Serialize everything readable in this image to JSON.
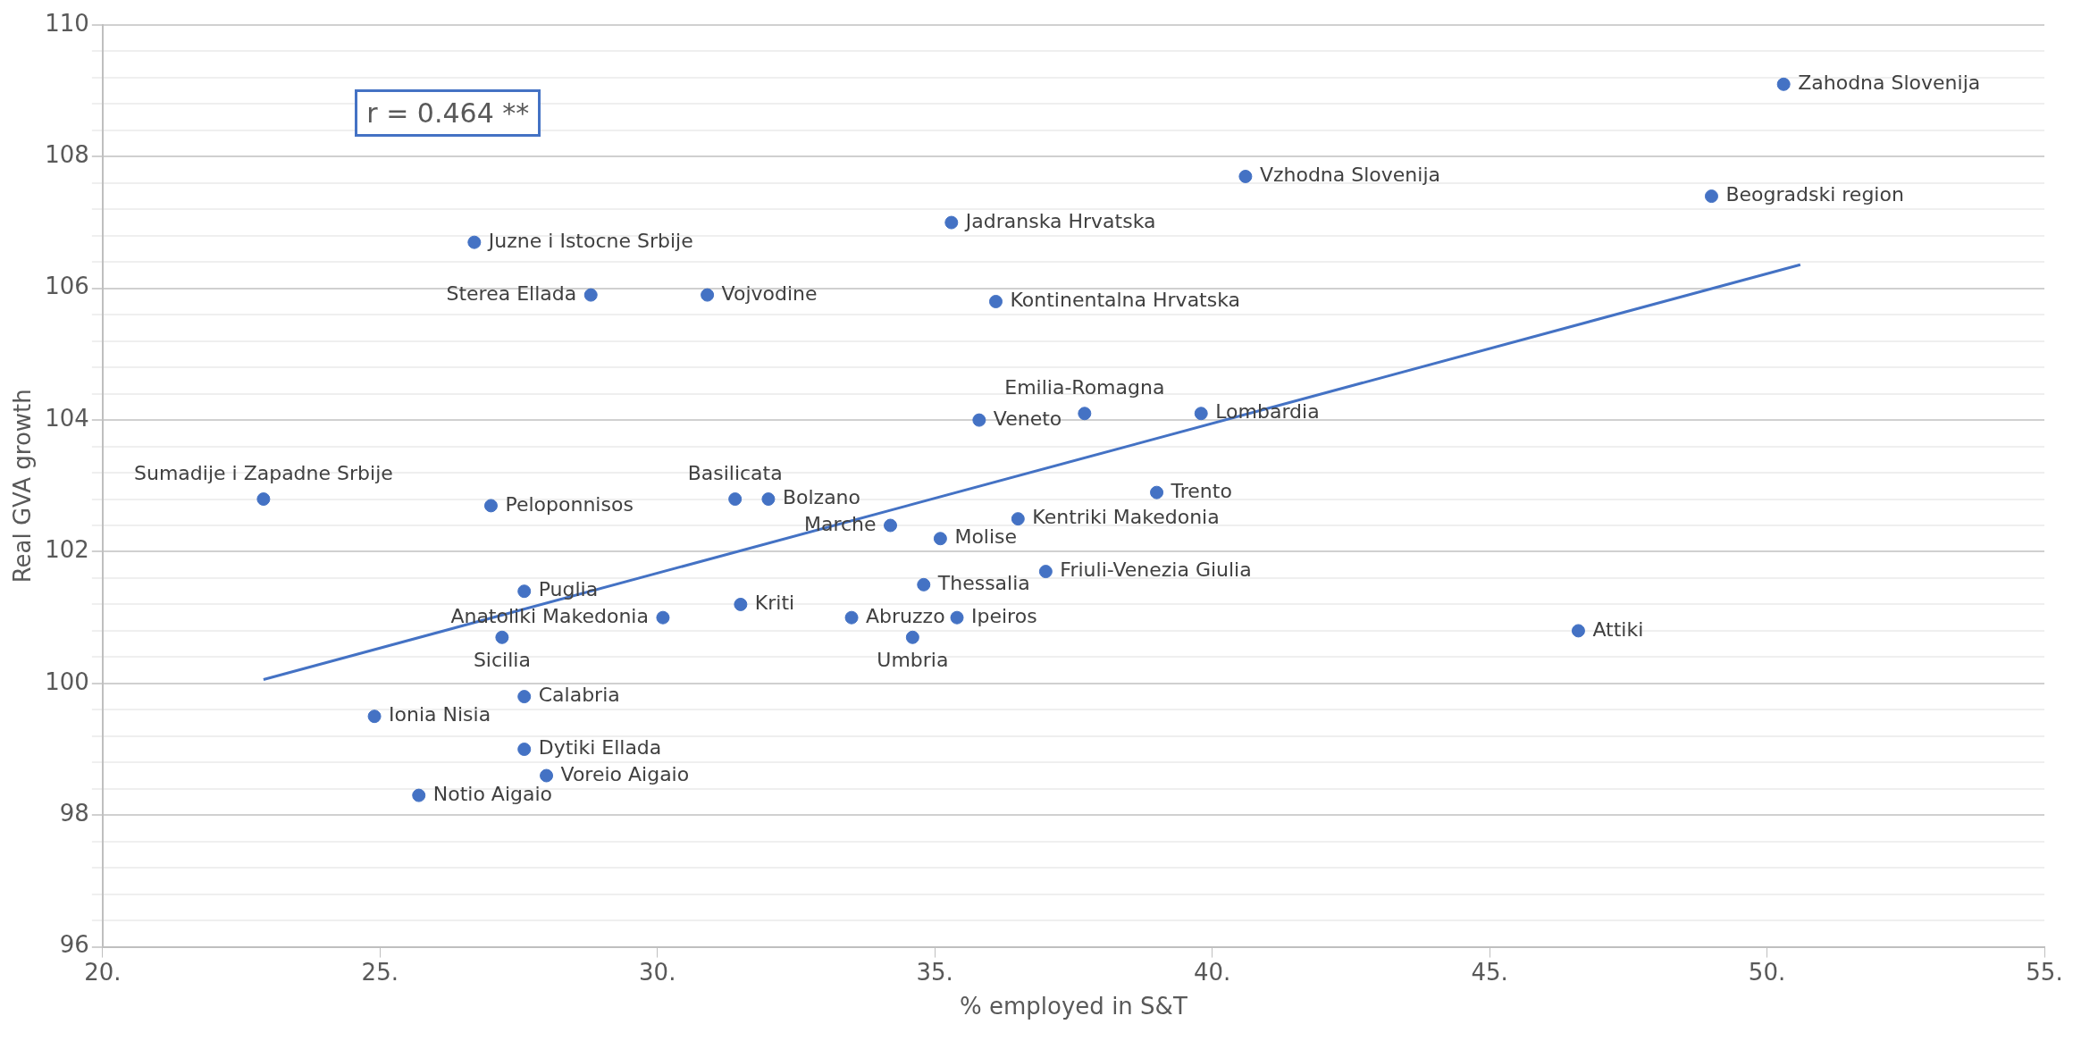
{
  "chart_data": {
    "type": "scatter",
    "xlabel": "% employed in S&T",
    "ylabel": "Real GVA growth",
    "x": [
      50.3,
      40.6,
      49.0,
      35.3,
      26.7,
      28.8,
      30.9,
      36.1,
      37.7,
      39.8,
      35.8,
      22.9,
      27.0,
      31.4,
      32.0,
      39.0,
      34.2,
      36.5,
      35.1,
      37.0,
      27.6,
      31.5,
      34.8,
      33.5,
      30.1,
      35.4,
      34.6,
      27.2,
      46.6,
      27.6,
      24.9,
      27.6,
      28.0,
      25.7
    ],
    "series": [
      {
        "color": "#4472c4",
        "values": [
          109.1,
          107.7,
          107.4,
          107.0,
          106.7,
          105.9,
          105.9,
          105.8,
          104.1,
          104.1,
          104.0,
          102.8,
          102.7,
          102.8,
          102.8,
          102.9,
          102.4,
          102.5,
          102.2,
          101.7,
          101.4,
          101.2,
          101.5,
          101.0,
          101.0,
          101.0,
          100.7,
          100.7,
          100.8,
          99.8,
          99.5,
          99.0,
          98.6,
          98.3
        ]
      },
      {
        "type": "line",
        "marker": "none",
        "color": "#4472c4",
        "x": [
          22.9,
          50.6
        ],
        "values": [
          100.06,
          106.36
        ]
      }
    ],
    "annotations": [
      "r = 0.464 **",
      {
        "text": "Zahodna Slovenija",
        "x": 50.3,
        "y": 109.1
      },
      {
        "text": "Vzhodna Slovenija",
        "x": 40.6,
        "y": 107.7
      },
      {
        "text": "Beogradski region",
        "x": 49.0,
        "y": 107.4
      },
      {
        "text": "Jadranska Hrvatska",
        "x": 35.3,
        "y": 107.0
      },
      {
        "text": "Juzne i Istocne Srbije",
        "x": 26.7,
        "y": 106.7
      },
      {
        "text": "Sterea Ellada",
        "x": 28.8,
        "y": 105.9
      },
      {
        "text": "Vojvodine",
        "x": 30.9,
        "y": 105.9
      },
      {
        "text": "Kontinentalna Hrvatska",
        "x": 36.1,
        "y": 105.8
      },
      {
        "text": "Emilia-Romagna",
        "x": 37.7,
        "y": 104.1
      },
      {
        "text": "Lombardia",
        "x": 39.8,
        "y": 104.1
      },
      {
        "text": "Veneto",
        "x": 35.8,
        "y": 104.0
      },
      {
        "text": "Sumadije i Zapadne Srbije",
        "x": 22.9,
        "y": 102.8
      },
      {
        "text": "Peloponnisos",
        "x": 27.0,
        "y": 102.7
      },
      {
        "text": "Basilicata",
        "x": 31.4,
        "y": 102.8
      },
      {
        "text": "Bolzano",
        "x": 32.0,
        "y": 102.8
      },
      {
        "text": "Trento",
        "x": 39.0,
        "y": 102.9
      },
      {
        "text": "Marche",
        "x": 34.2,
        "y": 102.4
      },
      {
        "text": "Kentriki Makedonia",
        "x": 36.5,
        "y": 102.5
      },
      {
        "text": "Molise",
        "x": 35.1,
        "y": 102.2
      },
      {
        "text": "Friuli-Venezia Giulia",
        "x": 37.0,
        "y": 101.7
      },
      {
        "text": "Puglia",
        "x": 27.6,
        "y": 101.4
      },
      {
        "text": "Kriti",
        "x": 31.5,
        "y": 101.2
      },
      {
        "text": "Thessalia",
        "x": 34.8,
        "y": 101.5
      },
      {
        "text": "Abruzzo",
        "x": 33.5,
        "y": 101.0
      },
      {
        "text": "Anatoliki Makedonia",
        "x": 30.1,
        "y": 101.0
      },
      {
        "text": "Ipeiros",
        "x": 35.4,
        "y": 101.0
      },
      {
        "text": "Umbria",
        "x": 34.6,
        "y": 100.7
      },
      {
        "text": "Sicilia",
        "x": 27.2,
        "y": 100.7
      },
      {
        "text": "Attiki",
        "x": 46.6,
        "y": 100.8
      },
      {
        "text": "Calabria",
        "x": 27.6,
        "y": 99.8
      },
      {
        "text": "Ionia Nisia",
        "x": 24.9,
        "y": 99.5
      },
      {
        "text": "Dytiki Ellada",
        "x": 27.6,
        "y": 99.0
      },
      {
        "text": "Voreio Aigaio",
        "x": 28.0,
        "y": 98.6
      },
      {
        "text": "Notio Aigaio",
        "x": 25.7,
        "y": 98.3
      }
    ],
    "xlim": [
      20,
      55
    ],
    "xticks": [
      {
        "value": 20,
        "label": "20."
      },
      {
        "value": 25,
        "label": "25."
      },
      {
        "value": 30,
        "label": "30."
      },
      {
        "value": 35,
        "label": "35."
      },
      {
        "value": 40,
        "label": "40."
      },
      {
        "value": 45,
        "label": "45."
      },
      {
        "value": 50,
        "label": "50."
      },
      {
        "value": 55,
        "label": "55."
      }
    ],
    "ylim": [
      96,
      110
    ],
    "yticks": [
      96,
      {
        "value": 96.4,
        "label": null
      },
      {
        "value": 96.8,
        "label": null
      },
      {
        "value": 97.2,
        "label": null
      },
      {
        "value": 97.6,
        "label": null
      },
      98,
      {
        "value": 98.4,
        "label": null
      },
      {
        "value": 98.8,
        "label": null
      },
      {
        "value": 99.2,
        "label": null
      },
      {
        "value": 99.6,
        "label": null
      },
      100,
      {
        "value": 100.4,
        "label": null
      },
      {
        "value": 100.8,
        "label": null
      },
      {
        "value": 101.2,
        "label": null
      },
      {
        "value": 101.6,
        "label": null
      },
      102,
      {
        "value": 102.4,
        "label": null
      },
      {
        "value": 102.8,
        "label": null
      },
      {
        "value": 103.2,
        "label": null
      },
      {
        "value": 103.6,
        "label": null
      },
      104,
      {
        "value": 104.4,
        "label": null
      },
      {
        "value": 104.8,
        "label": null
      },
      {
        "value": 105.2,
        "label": null
      },
      {
        "value": 105.6,
        "label": null
      },
      106,
      {
        "value": 106.4,
        "label": null
      },
      {
        "value": 106.8,
        "label": null
      },
      {
        "value": 107.2,
        "label": null
      },
      {
        "value": 107.6,
        "label": null
      },
      108,
      {
        "value": 108.4,
        "label": null
      },
      {
        "value": 108.8,
        "label": null
      },
      {
        "value": 109.2,
        "label": null
      },
      {
        "value": 109.6,
        "label": null
      },
      110
    ],
    "grid": "y",
    "marker": "circle",
    "legend": false
  }
}
